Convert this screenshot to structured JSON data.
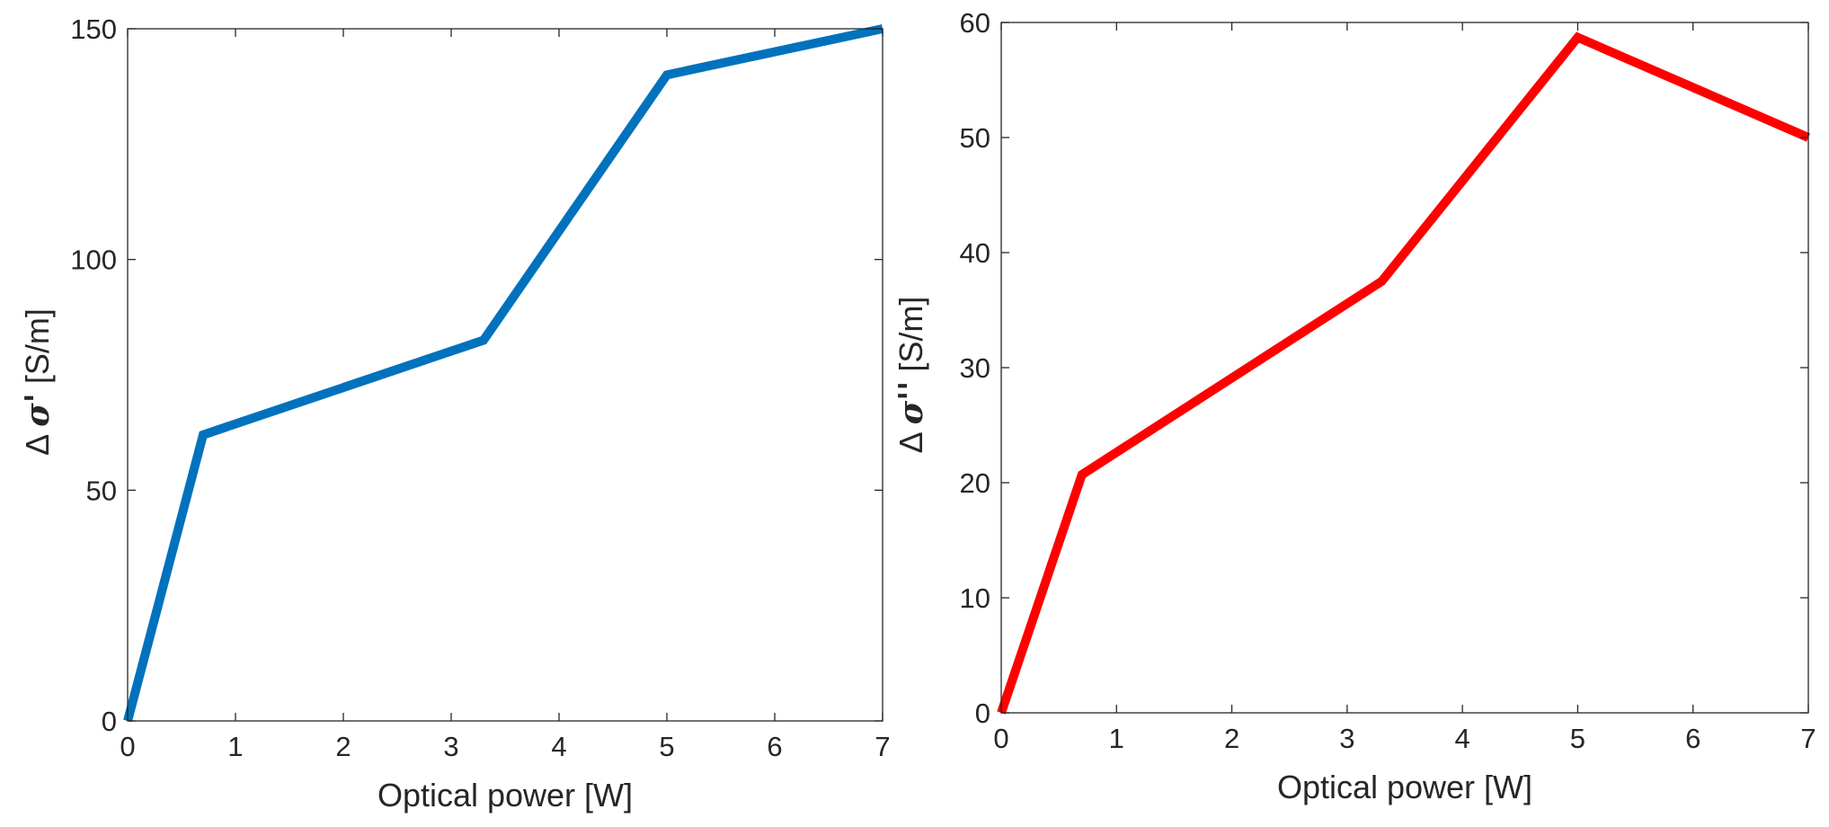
{
  "chart_data": [
    {
      "type": "line",
      "xlabel": "Optical power [W]",
      "ylabel_prefix": "Δ ",
      "ylabel_symbol": "σ'",
      "ylabel_unit": " [S/m]",
      "xlim": [
        0,
        7
      ],
      "ylim": [
        0,
        150
      ],
      "xticks": [
        0,
        1,
        2,
        3,
        4,
        5,
        6,
        7
      ],
      "yticks": [
        0,
        50,
        100,
        150
      ],
      "grid": false,
      "series": [
        {
          "name": "Δσ'",
          "color": "#0072BD",
          "x": [
            0,
            0.7,
            3.3,
            5.0,
            7.0
          ],
          "y": [
            0,
            62,
            82.5,
            140,
            150
          ]
        }
      ]
    },
    {
      "type": "line",
      "xlabel": "Optical power [W]",
      "ylabel_prefix": "Δ ",
      "ylabel_symbol": "σ''",
      "ylabel_unit": " [S/m]",
      "xlim": [
        0,
        7
      ],
      "ylim": [
        0,
        60
      ],
      "xticks": [
        0,
        1,
        2,
        3,
        4,
        5,
        6,
        7
      ],
      "yticks": [
        0,
        10,
        20,
        30,
        40,
        50,
        60
      ],
      "grid": false,
      "series": [
        {
          "name": "Δσ''",
          "color": "#FF0000",
          "x": [
            0,
            0.7,
            3.3,
            5.0,
            7.0
          ],
          "y": [
            0,
            20.7,
            37.5,
            58.7,
            50
          ]
        }
      ]
    }
  ]
}
